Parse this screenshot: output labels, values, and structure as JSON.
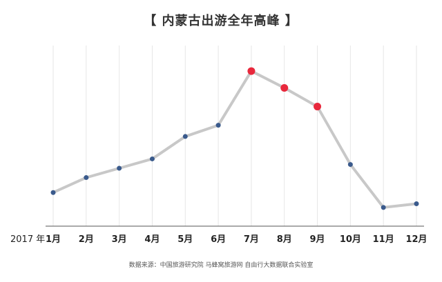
{
  "chart_data": {
    "type": "line",
    "title": "【 内蒙古出游全年高峰 】",
    "year_label": "2017 年",
    "categories": [
      "1月",
      "2月",
      "3月",
      "4月",
      "5月",
      "6月",
      "7月",
      "8月",
      "9月",
      "10月",
      "11月",
      "12月"
    ],
    "series": [
      {
        "values": [
          0.18,
          0.26,
          0.31,
          0.36,
          0.48,
          0.54,
          0.83,
          0.74,
          0.64,
          0.33,
          0.1,
          0.12
        ],
        "highlight": [
          false,
          false,
          false,
          false,
          false,
          false,
          true,
          true,
          true,
          false,
          false,
          false
        ]
      }
    ],
    "ylim": [
      0,
      1
    ],
    "grid": true,
    "y_axis_labels_shown": false,
    "colors": {
      "line": "#c8c8c8",
      "point": "#3a5a8c",
      "highlight_point": "#e8283c",
      "grid": "#e6e6e6",
      "axis": "#555555"
    },
    "source": "数据来源：中国旅游研究院 马蜂窝旅游网 自由行大数据联合实验室"
  }
}
